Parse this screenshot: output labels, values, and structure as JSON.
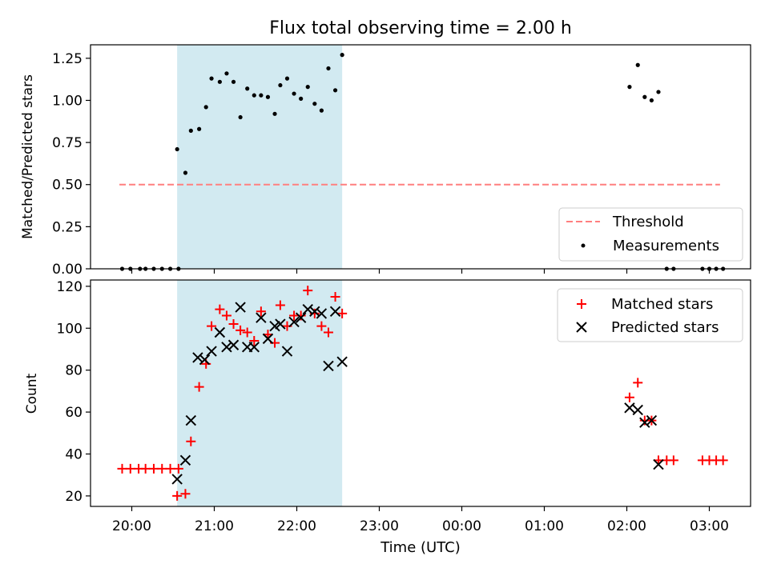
{
  "chart_data": [
    {
      "type": "scatter",
      "title": "Flux total observing time = 2.00 h",
      "ylabel": "Matched/Predicted stars",
      "xlabel": "",
      "ylim": [
        0,
        1.33
      ],
      "yticks": [
        "0.00",
        "0.25",
        "0.50",
        "0.75",
        "1.00",
        "1.25"
      ],
      "ytick_values": [
        0,
        0.25,
        0.5,
        0.75,
        1.0,
        1.25
      ],
      "grid": false,
      "legend_position": "lower right",
      "highlight_span": {
        "start_hours": 20.55,
        "end_hours": 22.55,
        "color": "#add8e6"
      },
      "threshold": {
        "name": "Threshold",
        "value": 0.5,
        "x_range_hours": [
          19.85,
          27.13
        ],
        "color": "#ff7f7f",
        "style": "dashed"
      },
      "series": [
        {
          "name": "Measurements",
          "color": "#000000",
          "marker": "dot",
          "points": [
            {
              "x": "19:53",
              "y": 0.0
            },
            {
              "x": "19:59",
              "y": 0.0
            },
            {
              "x": "20:06",
              "y": 0.0
            },
            {
              "x": "20:10",
              "y": 0.0
            },
            {
              "x": "20:16",
              "y": 0.0
            },
            {
              "x": "20:22",
              "y": 0.0
            },
            {
              "x": "20:28",
              "y": 0.0
            },
            {
              "x": "20:34",
              "y": 0.0
            },
            {
              "x": "20:33",
              "y": 0.71
            },
            {
              "x": "20:39",
              "y": 0.57
            },
            {
              "x": "20:43",
              "y": 0.82
            },
            {
              "x": "20:49",
              "y": 0.83
            },
            {
              "x": "20:54",
              "y": 0.96
            },
            {
              "x": "20:58",
              "y": 1.13
            },
            {
              "x": "21:04",
              "y": 1.11
            },
            {
              "x": "21:09",
              "y": 1.16
            },
            {
              "x": "21:14",
              "y": 1.11
            },
            {
              "x": "21:19",
              "y": 0.9
            },
            {
              "x": "21:24",
              "y": 1.07
            },
            {
              "x": "21:29",
              "y": 1.03
            },
            {
              "x": "21:34",
              "y": 1.03
            },
            {
              "x": "21:39",
              "y": 1.02
            },
            {
              "x": "21:44",
              "y": 0.92
            },
            {
              "x": "21:48",
              "y": 1.09
            },
            {
              "x": "21:53",
              "y": 1.13
            },
            {
              "x": "21:58",
              "y": 1.04
            },
            {
              "x": "22:03",
              "y": 1.01
            },
            {
              "x": "22:08",
              "y": 1.08
            },
            {
              "x": "22:13",
              "y": 0.98
            },
            {
              "x": "22:18",
              "y": 0.94
            },
            {
              "x": "22:23",
              "y": 1.19
            },
            {
              "x": "22:28",
              "y": 1.06
            },
            {
              "x": "22:33",
              "y": 1.27
            },
            {
              "x": "02:02",
              "y": 1.08
            },
            {
              "x": "02:08",
              "y": 1.21
            },
            {
              "x": "02:13",
              "y": 1.02
            },
            {
              "x": "02:18",
              "y": 1.0
            },
            {
              "x": "02:23",
              "y": 1.05
            },
            {
              "x": "02:29",
              "y": 0.0
            },
            {
              "x": "02:34",
              "y": 0.0
            },
            {
              "x": "02:55",
              "y": 0.0
            },
            {
              "x": "03:00",
              "y": 0.0
            },
            {
              "x": "03:05",
              "y": 0.0
            },
            {
              "x": "03:10",
              "y": 0.0
            }
          ]
        }
      ]
    },
    {
      "type": "scatter",
      "title": "",
      "ylabel": "Count",
      "xlabel": "Time (UTC)",
      "ylim": [
        15,
        123
      ],
      "yticks": [
        "20",
        "40",
        "60",
        "80",
        "100",
        "120"
      ],
      "ytick_values": [
        20,
        40,
        60,
        80,
        100,
        120
      ],
      "xticks": [
        "20:00",
        "21:00",
        "22:00",
        "23:00",
        "00:00",
        "01:00",
        "02:00",
        "03:00"
      ],
      "grid": false,
      "legend_position": "upper right",
      "highlight_span": {
        "start_hours": 20.55,
        "end_hours": 22.55,
        "color": "#add8e6"
      },
      "series": [
        {
          "name": "Matched stars",
          "color": "#ff0000",
          "marker": "plus",
          "points": [
            {
              "x": "19:53",
              "y": 33
            },
            {
              "x": "19:59",
              "y": 33
            },
            {
              "x": "20:05",
              "y": 33
            },
            {
              "x": "20:10",
              "y": 33
            },
            {
              "x": "20:16",
              "y": 33
            },
            {
              "x": "20:22",
              "y": 33
            },
            {
              "x": "20:28",
              "y": 33
            },
            {
              "x": "20:34",
              "y": 33
            },
            {
              "x": "20:33",
              "y": 20
            },
            {
              "x": "20:39",
              "y": 21
            },
            {
              "x": "20:43",
              "y": 46
            },
            {
              "x": "20:49",
              "y": 72
            },
            {
              "x": "20:54",
              "y": 83
            },
            {
              "x": "20:58",
              "y": 101
            },
            {
              "x": "21:04",
              "y": 109
            },
            {
              "x": "21:09",
              "y": 106
            },
            {
              "x": "21:14",
              "y": 102
            },
            {
              "x": "21:19",
              "y": 99
            },
            {
              "x": "21:24",
              "y": 98
            },
            {
              "x": "21:29",
              "y": 94
            },
            {
              "x": "21:34",
              "y": 108
            },
            {
              "x": "21:39",
              "y": 97
            },
            {
              "x": "21:44",
              "y": 93
            },
            {
              "x": "21:48",
              "y": 111
            },
            {
              "x": "21:53",
              "y": 101
            },
            {
              "x": "21:58",
              "y": 106
            },
            {
              "x": "22:03",
              "y": 106
            },
            {
              "x": "22:08",
              "y": 118
            },
            {
              "x": "22:13",
              "y": 107
            },
            {
              "x": "22:18",
              "y": 101
            },
            {
              "x": "22:23",
              "y": 98
            },
            {
              "x": "22:28",
              "y": 115
            },
            {
              "x": "22:33",
              "y": 107
            },
            {
              "x": "02:02",
              "y": 67
            },
            {
              "x": "02:08",
              "y": 74
            },
            {
              "x": "02:13",
              "y": 56
            },
            {
              "x": "02:18",
              "y": 56
            },
            {
              "x": "02:23",
              "y": 37
            },
            {
              "x": "02:29",
              "y": 37
            },
            {
              "x": "02:34",
              "y": 37
            },
            {
              "x": "02:55",
              "y": 37
            },
            {
              "x": "03:00",
              "y": 37
            },
            {
              "x": "03:05",
              "y": 37
            },
            {
              "x": "03:10",
              "y": 37
            }
          ]
        },
        {
          "name": "Predicted stars",
          "color": "#000000",
          "marker": "x",
          "points": [
            {
              "x": "20:33",
              "y": 28
            },
            {
              "x": "20:39",
              "y": 37
            },
            {
              "x": "20:43",
              "y": 56
            },
            {
              "x": "20:48",
              "y": 86
            },
            {
              "x": "20:53",
              "y": 85
            },
            {
              "x": "20:58",
              "y": 89
            },
            {
              "x": "21:04",
              "y": 98
            },
            {
              "x": "21:09",
              "y": 91
            },
            {
              "x": "21:14",
              "y": 92
            },
            {
              "x": "21:19",
              "y": 110
            },
            {
              "x": "21:24",
              "y": 91
            },
            {
              "x": "21:29",
              "y": 91
            },
            {
              "x": "21:34",
              "y": 105
            },
            {
              "x": "21:39",
              "y": 95
            },
            {
              "x": "21:44",
              "y": 101
            },
            {
              "x": "21:48",
              "y": 102
            },
            {
              "x": "21:53",
              "y": 89
            },
            {
              "x": "21:58",
              "y": 103
            },
            {
              "x": "22:03",
              "y": 105
            },
            {
              "x": "22:08",
              "y": 109
            },
            {
              "x": "22:13",
              "y": 108
            },
            {
              "x": "22:18",
              "y": 107
            },
            {
              "x": "22:23",
              "y": 82
            },
            {
              "x": "22:28",
              "y": 108
            },
            {
              "x": "22:33",
              "y": 84
            },
            {
              "x": "02:02",
              "y": 62
            },
            {
              "x": "02:08",
              "y": 61
            },
            {
              "x": "02:13",
              "y": 55
            },
            {
              "x": "02:18",
              "y": 56
            },
            {
              "x": "02:23",
              "y": 35
            }
          ]
        }
      ]
    }
  ]
}
